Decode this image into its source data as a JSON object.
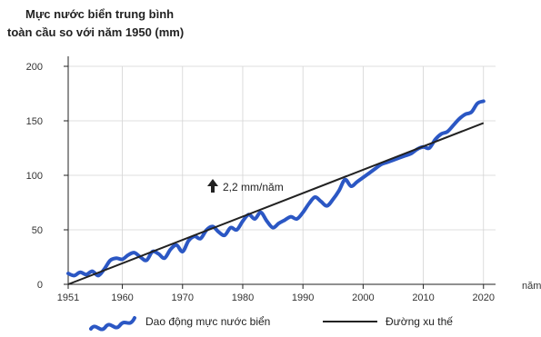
{
  "chart_data": {
    "type": "line",
    "title_lines": [
      "Mực nước biển trung bình",
      "toàn cầu so với năm 1950 (mm)"
    ],
    "x_unit": "năm",
    "x_ticks": [
      "1951",
      "1960",
      "1970",
      "1980",
      "1990",
      "2000",
      "2010",
      "2020"
    ],
    "y_ticks": [
      "0",
      "50",
      "100",
      "150",
      "200"
    ],
    "xlim": [
      1951,
      2022
    ],
    "ylim": [
      0,
      200
    ],
    "annotation": "2,2 mm/năm",
    "colors": {
      "series": "#2b57c4",
      "trend": "#222222"
    },
    "series": [
      {
        "name": "Dao động mực nước biển",
        "x": [
          1951,
          1952,
          1953,
          1954,
          1955,
          1956,
          1957,
          1958,
          1959,
          1960,
          1961,
          1962,
          1963,
          1964,
          1965,
          1966,
          1967,
          1968,
          1969,
          1970,
          1971,
          1972,
          1973,
          1974,
          1975,
          1976,
          1977,
          1978,
          1979,
          1980,
          1981,
          1982,
          1983,
          1984,
          1985,
          1986,
          1987,
          1988,
          1989,
          1990,
          1991,
          1992,
          1993,
          1994,
          1995,
          1996,
          1997,
          1998,
          1999,
          2000,
          2001,
          2002,
          2003,
          2004,
          2005,
          2006,
          2007,
          2008,
          2009,
          2010,
          2011,
          2012,
          2013,
          2014,
          2015,
          2016,
          2017,
          2018,
          2019,
          2020
        ],
        "values": [
          10,
          8,
          11,
          9,
          12,
          8,
          14,
          22,
          24,
          23,
          27,
          29,
          25,
          22,
          30,
          28,
          24,
          32,
          36,
          30,
          40,
          44,
          42,
          50,
          53,
          48,
          45,
          52,
          50,
          58,
          64,
          60,
          66,
          58,
          52,
          56,
          59,
          62,
          60,
          66,
          74,
          80,
          76,
          72,
          78,
          86,
          96,
          90,
          94,
          98,
          102,
          106,
          110,
          112,
          114,
          116,
          118,
          120,
          124,
          126,
          125,
          133,
          138,
          140,
          146,
          152,
          156,
          158,
          166,
          168
        ]
      },
      {
        "name": "Đường xu thế",
        "x": [
          1951,
          2020
        ],
        "values": [
          0,
          148
        ]
      }
    ]
  }
}
